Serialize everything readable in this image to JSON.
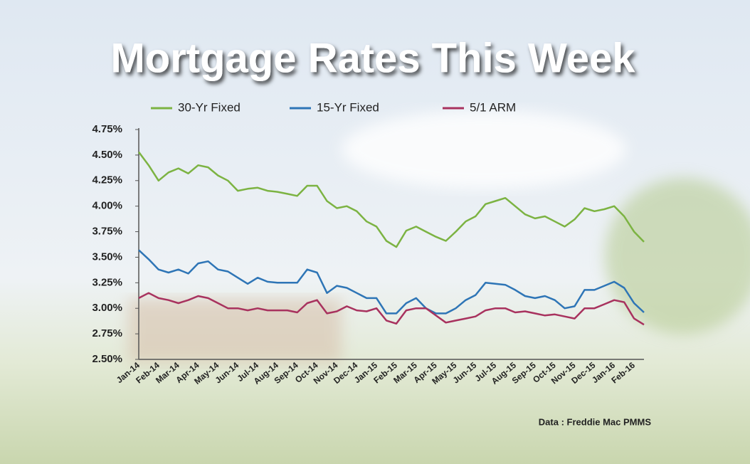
{
  "chart_data": {
    "type": "line",
    "title": "Mortgage Rates This Week",
    "source": "Data : Freddie Mac PMMS",
    "categories": [
      "Jan-14",
      null,
      "Feb-14",
      null,
      "Mar-14",
      null,
      "Apr-14",
      null,
      "May-14",
      null,
      "Jun-14",
      null,
      "Jul-14",
      null,
      "Aug-14",
      null,
      "Sep-14",
      null,
      "Oct-14",
      null,
      "Nov-14",
      null,
      "Dec-14",
      null,
      "Jan-15",
      null,
      "Feb-15",
      null,
      "Mar-15",
      null,
      "Apr-15",
      null,
      "May-15",
      null,
      "Jun-15",
      null,
      "Jul-15",
      null,
      "Aug-15",
      null,
      "Sep-15",
      null,
      "Oct-15",
      null,
      "Nov-15",
      null,
      "Dec-15",
      null,
      "Jan-16",
      null,
      "Feb-16",
      null
    ],
    "series": [
      {
        "name": "30-Yr Fixed",
        "color": "#7cb342",
        "values": [
          4.53,
          4.4,
          4.25,
          4.33,
          4.37,
          4.32,
          4.4,
          4.38,
          4.3,
          4.25,
          4.15,
          4.17,
          4.18,
          4.15,
          4.14,
          4.12,
          4.1,
          4.2,
          4.2,
          4.05,
          3.98,
          4.0,
          3.95,
          3.85,
          3.8,
          3.66,
          3.6,
          3.76,
          3.8,
          3.75,
          3.7,
          3.66,
          3.75,
          3.85,
          3.9,
          4.02,
          4.05,
          4.08,
          4.0,
          3.92,
          3.88,
          3.9,
          3.85,
          3.8,
          3.87,
          3.98,
          3.95,
          3.97,
          4.0,
          3.9,
          3.75,
          3.65
        ]
      },
      {
        "name": "15-Yr Fixed",
        "color": "#2e75b6",
        "values": [
          3.57,
          3.48,
          3.38,
          3.35,
          3.38,
          3.34,
          3.44,
          3.46,
          3.38,
          3.36,
          3.3,
          3.24,
          3.3,
          3.26,
          3.25,
          3.25,
          3.25,
          3.38,
          3.35,
          3.15,
          3.22,
          3.2,
          3.15,
          3.1,
          3.1,
          2.95,
          2.95,
          3.05,
          3.1,
          3.0,
          2.95,
          2.95,
          3.0,
          3.08,
          3.13,
          3.25,
          3.24,
          3.23,
          3.18,
          3.12,
          3.1,
          3.12,
          3.08,
          3.0,
          3.02,
          3.18,
          3.18,
          3.22,
          3.26,
          3.2,
          3.05,
          2.96
        ]
      },
      {
        "name": "5/1 ARM",
        "color": "#a8325e",
        "values": [
          3.1,
          3.15,
          3.1,
          3.08,
          3.05,
          3.08,
          3.12,
          3.1,
          3.05,
          3.0,
          3.0,
          2.98,
          3.0,
          2.98,
          2.98,
          2.98,
          2.96,
          3.05,
          3.08,
          2.95,
          2.97,
          3.02,
          2.98,
          2.97,
          3.0,
          2.88,
          2.85,
          2.98,
          3.0,
          3.0,
          2.93,
          2.86,
          2.88,
          2.9,
          2.92,
          2.98,
          3.0,
          3.0,
          2.96,
          2.97,
          2.95,
          2.93,
          2.94,
          2.92,
          2.9,
          3.0,
          3.0,
          3.04,
          3.08,
          3.06,
          2.9,
          2.84
        ]
      }
    ],
    "ylim": [
      2.5,
      4.75
    ],
    "yticks": [
      {
        "value": 2.5,
        "label": "2.50%"
      },
      {
        "value": 2.75,
        "label": "2.75%"
      },
      {
        "value": 3.0,
        "label": "3.00%"
      },
      {
        "value": 3.25,
        "label": "3.25%"
      },
      {
        "value": 3.5,
        "label": "3.50%"
      },
      {
        "value": 3.75,
        "label": "3.75%"
      },
      {
        "value": 4.0,
        "label": "4.00%"
      },
      {
        "value": 4.25,
        "label": "4.25%"
      },
      {
        "value": 4.5,
        "label": "4.50%"
      },
      {
        "value": 4.75,
        "label": "4.75%"
      }
    ],
    "legend": "top",
    "grid": false
  }
}
